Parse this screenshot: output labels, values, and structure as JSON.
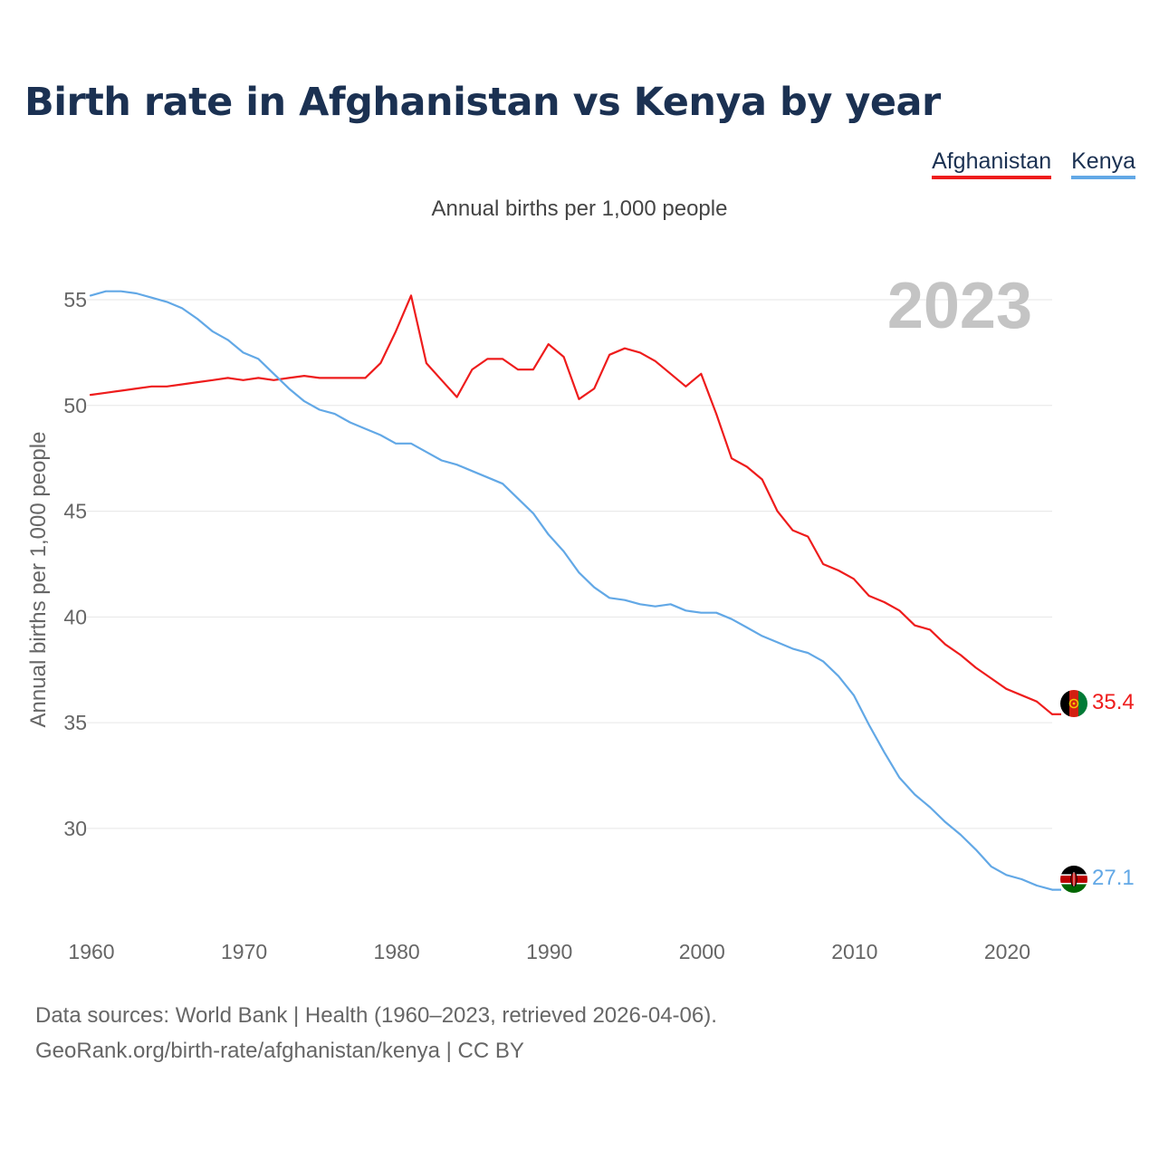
{
  "title": "Birth rate in Afghanistan vs Kenya by year",
  "legend": [
    {
      "name": "Afghanistan",
      "color": "#ee1c1c"
    },
    {
      "name": "Kenya",
      "color": "#62a8e6"
    }
  ],
  "footer": {
    "line1": "Data sources: World Bank | Health (1960–2023, retrieved 2026-04-06).",
    "line2": "GeoRank.org/birth-rate/afghanistan/kenya | CC BY"
  },
  "chart_data": {
    "type": "line",
    "title": "Birth rate in Afghanistan vs Kenya by year",
    "subtitle": "Annual births per 1,000 people",
    "xlabel": "",
    "ylabel": "Annual births per 1,000 people",
    "year_label": "2023",
    "xlim": [
      1960,
      2023
    ],
    "ylim": [
      25.5,
      56.5
    ],
    "xticks": [
      1960,
      1970,
      1980,
      1990,
      2000,
      2010,
      2020
    ],
    "yticks": [
      30,
      35,
      40,
      45,
      50,
      55
    ],
    "grid": true,
    "legend_position": "top-right",
    "series": [
      {
        "name": "Afghanistan",
        "color": "#ee1c1c",
        "end_label": "35.4",
        "x": [
          1960,
          1961,
          1962,
          1963,
          1964,
          1965,
          1966,
          1967,
          1968,
          1969,
          1970,
          1971,
          1972,
          1973,
          1974,
          1975,
          1976,
          1977,
          1978,
          1979,
          1980,
          1981,
          1982,
          1983,
          1984,
          1985,
          1986,
          1987,
          1988,
          1989,
          1990,
          1991,
          1992,
          1993,
          1994,
          1995,
          1996,
          1997,
          1998,
          1999,
          2000,
          2001,
          2002,
          2003,
          2004,
          2005,
          2006,
          2007,
          2008,
          2009,
          2010,
          2011,
          2012,
          2013,
          2014,
          2015,
          2016,
          2017,
          2018,
          2019,
          2020,
          2021,
          2022,
          2023
        ],
        "values": [
          50.5,
          50.6,
          50.7,
          50.8,
          50.9,
          50.9,
          51.0,
          51.1,
          51.2,
          51.3,
          51.2,
          51.3,
          51.2,
          51.3,
          51.4,
          51.3,
          51.3,
          51.3,
          51.3,
          52.0,
          53.5,
          55.2,
          52.0,
          51.2,
          50.4,
          51.7,
          52.2,
          52.2,
          51.7,
          51.7,
          52.9,
          52.3,
          50.3,
          50.8,
          52.4,
          52.7,
          52.5,
          52.1,
          51.5,
          50.9,
          51.5,
          49.6,
          47.5,
          47.1,
          46.5,
          45.0,
          44.1,
          43.8,
          42.5,
          42.2,
          41.8,
          41.0,
          40.7,
          40.3,
          39.6,
          39.4,
          38.7,
          38.2,
          37.6,
          37.1,
          36.6,
          36.3,
          36.0,
          35.4
        ]
      },
      {
        "name": "Kenya",
        "color": "#62a8e6",
        "end_label": "27.1",
        "x": [
          1960,
          1961,
          1962,
          1963,
          1964,
          1965,
          1966,
          1967,
          1968,
          1969,
          1970,
          1971,
          1972,
          1973,
          1974,
          1975,
          1976,
          1977,
          1978,
          1979,
          1980,
          1981,
          1982,
          1983,
          1984,
          1985,
          1986,
          1987,
          1988,
          1989,
          1990,
          1991,
          1992,
          1993,
          1994,
          1995,
          1996,
          1997,
          1998,
          1999,
          2000,
          2001,
          2002,
          2003,
          2004,
          2005,
          2006,
          2007,
          2008,
          2009,
          2010,
          2011,
          2012,
          2013,
          2014,
          2015,
          2016,
          2017,
          2018,
          2019,
          2020,
          2021,
          2022,
          2023
        ],
        "values": [
          55.2,
          55.4,
          55.4,
          55.3,
          55.1,
          54.9,
          54.6,
          54.1,
          53.5,
          53.1,
          52.5,
          52.2,
          51.5,
          50.8,
          50.2,
          49.8,
          49.6,
          49.2,
          48.9,
          48.6,
          48.2,
          48.2,
          47.8,
          47.4,
          47.2,
          46.9,
          46.6,
          46.3,
          45.6,
          44.9,
          43.9,
          43.1,
          42.1,
          41.4,
          40.9,
          40.8,
          40.6,
          40.5,
          40.6,
          40.3,
          40.2,
          40.2,
          39.9,
          39.5,
          39.1,
          38.8,
          38.5,
          38.3,
          37.9,
          37.2,
          36.3,
          34.9,
          33.6,
          32.4,
          31.6,
          31.0,
          30.3,
          29.7,
          29.0,
          28.2,
          27.8,
          27.6,
          27.3,
          27.1
        ]
      }
    ]
  }
}
